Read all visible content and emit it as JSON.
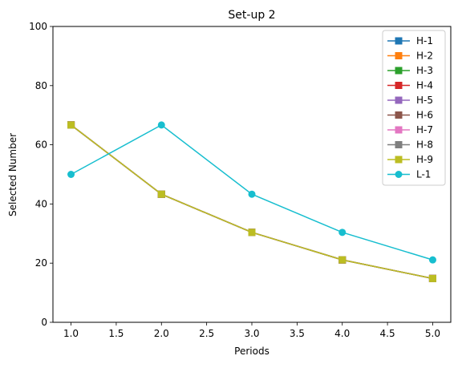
{
  "chart_data": {
    "type": "line",
    "title": "Set-up 2",
    "xlabel": "Periods",
    "ylabel": "Selected Number",
    "xlim": [
      0.8,
      5.2
    ],
    "ylim": [
      0,
      100
    ],
    "x_ticks": [
      "1.0",
      "1.5",
      "2.0",
      "2.5",
      "3.0",
      "3.5",
      "4.0",
      "4.5",
      "5.0"
    ],
    "y_ticks": [
      "0",
      "20",
      "40",
      "60",
      "80",
      "100"
    ],
    "grid": false,
    "legend_position": "top-right",
    "x": [
      1,
      2,
      3,
      4,
      5
    ],
    "series": [
      {
        "name": "H-1",
        "color": "#1f77b4",
        "marker": "square",
        "values": [
          66.7,
          43.3,
          30.4,
          21.1,
          14.8
        ]
      },
      {
        "name": "H-2",
        "color": "#ff7f0e",
        "marker": "square",
        "values": [
          66.7,
          43.3,
          30.4,
          21.1,
          14.8
        ]
      },
      {
        "name": "H-3",
        "color": "#2ca02c",
        "marker": "square",
        "values": [
          66.7,
          43.3,
          30.4,
          21.1,
          14.8
        ]
      },
      {
        "name": "H-4",
        "color": "#d62728",
        "marker": "square",
        "values": [
          66.7,
          43.3,
          30.4,
          21.1,
          14.8
        ]
      },
      {
        "name": "H-5",
        "color": "#9467bd",
        "marker": "square",
        "values": [
          66.7,
          43.3,
          30.4,
          21.1,
          14.8
        ]
      },
      {
        "name": "H-6",
        "color": "#8c564b",
        "marker": "square",
        "values": [
          66.7,
          43.3,
          30.4,
          21.1,
          14.8
        ]
      },
      {
        "name": "H-7",
        "color": "#e377c2",
        "marker": "square",
        "values": [
          66.7,
          43.3,
          30.4,
          21.1,
          14.8
        ]
      },
      {
        "name": "H-8",
        "color": "#7f7f7f",
        "marker": "square",
        "values": [
          66.7,
          43.3,
          30.4,
          21.1,
          14.8
        ]
      },
      {
        "name": "H-9",
        "color": "#bcbd22",
        "marker": "square",
        "values": [
          66.7,
          43.3,
          30.4,
          21.1,
          14.8
        ]
      },
      {
        "name": "L-1",
        "color": "#17becf",
        "marker": "circle",
        "values": [
          50.0,
          66.7,
          43.3,
          30.4,
          21.1
        ]
      }
    ]
  }
}
